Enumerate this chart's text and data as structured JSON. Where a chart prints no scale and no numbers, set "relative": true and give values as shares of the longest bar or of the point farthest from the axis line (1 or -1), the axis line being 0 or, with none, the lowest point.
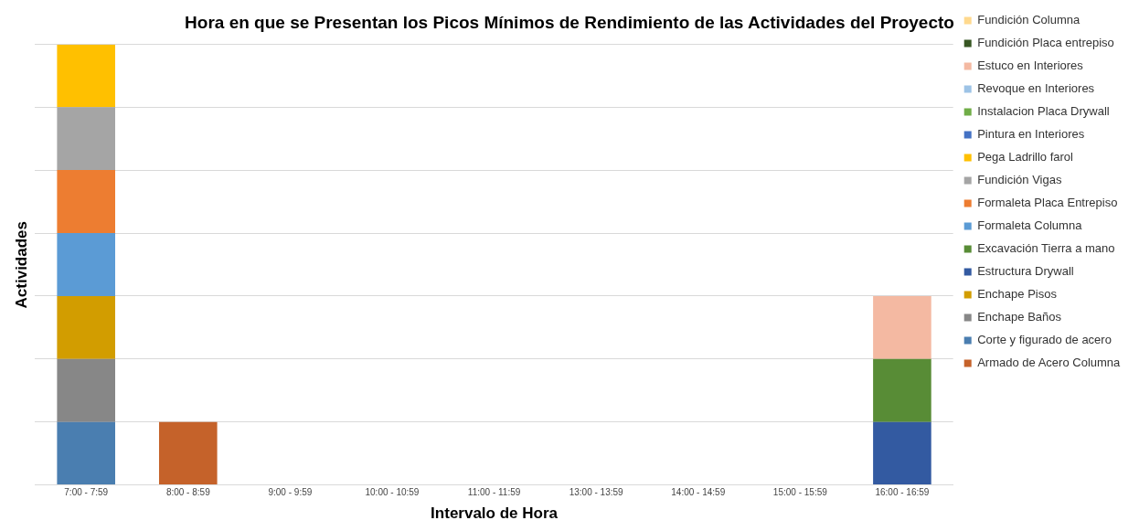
{
  "chart_data": {
    "type": "bar",
    "title": "Hora en que se Presentan los Picos Mínimos de Rendimiento de las Actividades del Proyecto",
    "xlabel": "Intervalo de Hora",
    "ylabel": "Actividades",
    "categories": [
      "7:00 - 7:59",
      "8:00 - 8:59",
      "9:00 - 9:59",
      "10:00 - 10:59",
      "11:00 - 11:59",
      "13:00 - 13:59",
      "14:00 - 14:59",
      "15:00 - 15:59",
      "16:00 - 16:59"
    ],
    "stacked": true,
    "relative": true,
    "grid": "y",
    "legend": "right",
    "series": [
      {
        "name": "Armado de Acero Columna",
        "color": "#c5622a",
        "values": [
          null,
          0.143,
          null,
          null,
          null,
          null,
          null,
          null,
          null
        ]
      },
      {
        "name": "Corte y figurado de acero",
        "color": "#4a7eb0",
        "values": [
          0.143,
          null,
          null,
          null,
          null,
          null,
          null,
          null,
          null
        ]
      },
      {
        "name": "Enchape Baños",
        "color": "#878787",
        "values": [
          0.143,
          null,
          null,
          null,
          null,
          null,
          null,
          null,
          null
        ]
      },
      {
        "name": "Enchape Pisos",
        "color": "#d29d00",
        "values": [
          0.143,
          null,
          null,
          null,
          null,
          null,
          null,
          null,
          null
        ]
      },
      {
        "name": "Estructura Drywall",
        "color": "#335aa1",
        "values": [
          null,
          null,
          null,
          null,
          null,
          null,
          null,
          null,
          0.143
        ]
      },
      {
        "name": "Excavación Tierra a mano",
        "color": "#588c36",
        "values": [
          null,
          null,
          null,
          null,
          null,
          null,
          null,
          null,
          0.143
        ]
      },
      {
        "name": "Formaleta Columna",
        "color": "#5b9bd5",
        "values": [
          0.143,
          null,
          null,
          null,
          null,
          null,
          null,
          null,
          null
        ]
      },
      {
        "name": "Formaleta Placa Entrepiso",
        "color": "#ed7d31",
        "values": [
          0.143,
          null,
          null,
          null,
          null,
          null,
          null,
          null,
          null
        ]
      },
      {
        "name": "Fundición Vigas",
        "color": "#a5a5a5",
        "values": [
          0.143,
          null,
          null,
          null,
          null,
          null,
          null,
          null,
          null
        ]
      },
      {
        "name": "Pega Ladrillo farol",
        "color": "#ffc000",
        "values": [
          0.142,
          null,
          null,
          null,
          null,
          null,
          null,
          null,
          null
        ]
      },
      {
        "name": "Pintura en Interiores",
        "color": "#4472c4",
        "values": [
          null,
          null,
          null,
          null,
          null,
          null,
          null,
          null,
          null
        ]
      },
      {
        "name": "Instalacion Placa Drywall",
        "color": "#70ad47",
        "values": [
          null,
          null,
          null,
          null,
          null,
          null,
          null,
          null,
          null
        ]
      },
      {
        "name": "Revoque en Interiores",
        "color": "#9dc3e6",
        "values": [
          null,
          null,
          null,
          null,
          null,
          null,
          null,
          null,
          null
        ]
      },
      {
        "name": "Estuco en Interiores",
        "color": "#f4b9a2",
        "values": [
          null,
          null,
          null,
          null,
          null,
          null,
          null,
          null,
          0.143
        ]
      },
      {
        "name": "Fundición Placa entrepiso",
        "color": "#375623",
        "values": [
          null,
          null,
          null,
          null,
          null,
          null,
          null,
          null,
          null
        ]
      },
      {
        "name": "Fundición Columna",
        "color": "#ffd98e",
        "values": [
          null,
          null,
          null,
          null,
          null,
          null,
          null,
          null,
          null
        ]
      }
    ]
  }
}
